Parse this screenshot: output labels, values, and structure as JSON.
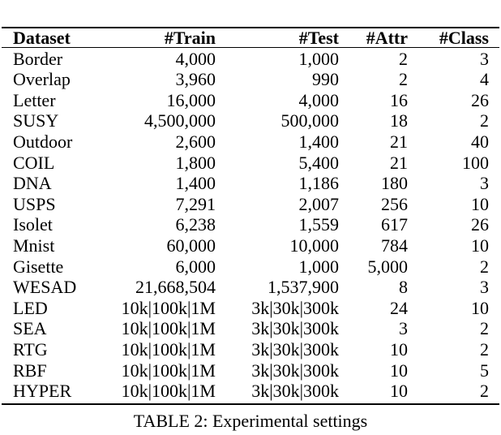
{
  "table": {
    "headers": [
      "Dataset",
      "#Train",
      "#Test",
      "#Attr",
      "#Class"
    ],
    "rows": [
      [
        "Border",
        "4,000",
        "1,000",
        "2",
        "3"
      ],
      [
        "Overlap",
        "3,960",
        "990",
        "2",
        "4"
      ],
      [
        "Letter",
        "16,000",
        "4,000",
        "16",
        "26"
      ],
      [
        "SUSY",
        "4,500,000",
        "500,000",
        "18",
        "2"
      ],
      [
        "Outdoor",
        "2,600",
        "1,400",
        "21",
        "40"
      ],
      [
        "COIL",
        "1,800",
        "5,400",
        "21",
        "100"
      ],
      [
        "DNA",
        "1,400",
        "1,186",
        "180",
        "3"
      ],
      [
        "USPS",
        "7,291",
        "2,007",
        "256",
        "10"
      ],
      [
        "Isolet",
        "6,238",
        "1,559",
        "617",
        "26"
      ],
      [
        "Mnist",
        "60,000",
        "10,000",
        "784",
        "10"
      ],
      [
        "Gisette",
        "6,000",
        "1,000",
        "5,000",
        "2"
      ],
      [
        "WESAD",
        "21,668,504",
        "1,537,900",
        "8",
        "3"
      ],
      [
        "LED",
        "10k|100k|1M",
        "3k|30k|300k",
        "24",
        "10"
      ],
      [
        "SEA",
        "10k|100k|1M",
        "3k|30k|300k",
        "3",
        "2"
      ],
      [
        "RTG",
        "10k|100k|1M",
        "3k|30k|300k",
        "10",
        "2"
      ],
      [
        "RBF",
        "10k|100k|1M",
        "3k|30k|300k",
        "10",
        "5"
      ],
      [
        "HYPER",
        "10k|100k|1M",
        "3k|30k|300k",
        "10",
        "2"
      ]
    ]
  },
  "caption": "TABLE 2: Experimental settings"
}
